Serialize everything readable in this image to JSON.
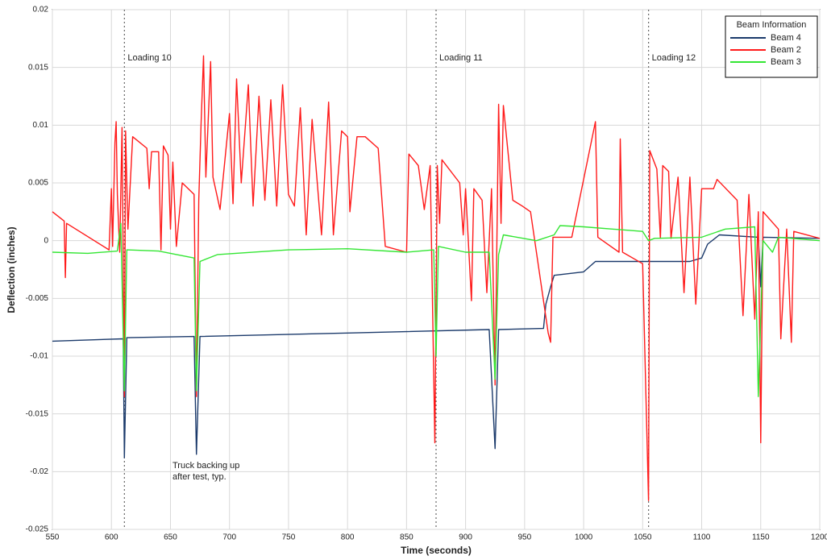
{
  "chart_data": {
    "type": "line",
    "xlabel": "Time (seconds)",
    "ylabel": "Deflection (inches)",
    "xlim": [
      550,
      1200
    ],
    "xticks": [
      550,
      600,
      650,
      700,
      750,
      800,
      850,
      900,
      950,
      1000,
      1050,
      1100,
      1150,
      1200
    ],
    "ylim": [
      -0.025,
      0.02
    ],
    "yticks": [
      -0.025,
      -0.02,
      -0.015,
      -0.01,
      -0.005,
      0,
      0.005,
      0.01,
      0.015,
      0.02
    ],
    "grid": true,
    "legend_title": "Beam Information",
    "legend_position": "top-right",
    "annotations": [
      {
        "text": "Loading 10",
        "x": 611
      },
      {
        "text": "Loading 11",
        "x": 875
      },
      {
        "text": "Loading 12",
        "x": 1055
      }
    ],
    "note": [
      "Truck backing up",
      "after test, typ."
    ],
    "series": [
      {
        "name": "Beam 4",
        "color": "#1b3a6b",
        "x": [
          550,
          610,
          611,
          613,
          670,
          672,
          675,
          800,
          920,
          925,
          928,
          966,
          968,
          972,
          975,
          1000,
          1010,
          1050,
          1090,
          1100,
          1105,
          1115,
          1148,
          1150,
          1152,
          1200
        ],
        "values": [
          -0.0087,
          -0.0085,
          -0.0188,
          -0.0084,
          -0.0083,
          -0.0185,
          -0.0083,
          -0.008,
          -0.0077,
          -0.018,
          -0.0077,
          -0.0076,
          -0.0055,
          -0.004,
          -0.003,
          -0.0027,
          -0.0018,
          -0.0018,
          -0.0018,
          -0.0015,
          -0.0003,
          0.0005,
          0.0003,
          -0.004,
          0.0003,
          0.0002
        ]
      },
      {
        "name": "Beam 2",
        "color": "#ff1a1a",
        "x": [
          550,
          560,
          561,
          562,
          598,
          600,
          601,
          603,
          604,
          605,
          607,
          609,
          611,
          612,
          614,
          618,
          630,
          632,
          634,
          640,
          642,
          644,
          648,
          650,
          652,
          655,
          660,
          670,
          672,
          674,
          676,
          678,
          680,
          684,
          686,
          692,
          700,
          703,
          706,
          710,
          716,
          720,
          725,
          730,
          735,
          740,
          745,
          750,
          755,
          760,
          765,
          770,
          778,
          784,
          788,
          795,
          800,
          802,
          808,
          815,
          826,
          832,
          850,
          852,
          860,
          865,
          870,
          874,
          876,
          878,
          880,
          895,
          898,
          900,
          905,
          907,
          914,
          918,
          922,
          925,
          928,
          930,
          932,
          940,
          948,
          955,
          970,
          972,
          974,
          990,
          1010,
          1012,
          1030,
          1031,
          1033,
          1050,
          1055,
          1056,
          1062,
          1065,
          1067,
          1072,
          1074,
          1080,
          1085,
          1090,
          1095,
          1100,
          1110,
          1113,
          1130,
          1135,
          1140,
          1145,
          1148,
          1150,
          1152,
          1165,
          1167,
          1172,
          1176,
          1178,
          1200
        ],
        "values": [
          0.0025,
          0.0017,
          -0.0032,
          0.0015,
          -0.0008,
          0.0045,
          -0.0005,
          0.0085,
          0.0103,
          0.004,
          -0.001,
          0.0098,
          -0.0135,
          0.0095,
          0.001,
          0.009,
          0.008,
          0.0045,
          0.0077,
          0.0077,
          -0.0008,
          0.0082,
          0.0074,
          0.001,
          0.0068,
          -0.0005,
          0.005,
          0.004,
          -0.0135,
          0.0035,
          0.0102,
          0.016,
          0.0055,
          0.0155,
          0.0055,
          0.0027,
          0.011,
          0.0032,
          0.014,
          0.005,
          0.0135,
          0.003,
          0.0125,
          0.0035,
          0.0122,
          0.003,
          0.0135,
          0.004,
          0.003,
          0.0115,
          0.0005,
          0.0105,
          0.0005,
          0.012,
          0.0005,
          0.0095,
          0.009,
          0.0025,
          0.009,
          0.009,
          0.008,
          -0.0005,
          -0.001,
          0.0075,
          0.0065,
          0.0027,
          0.0065,
          -0.0175,
          0.0065,
          0.0015,
          0.007,
          0.005,
          0.0005,
          0.0045,
          -0.0052,
          0.0045,
          0.0035,
          -0.0045,
          0.0045,
          -0.0125,
          0.0118,
          0.0015,
          0.0117,
          0.0035,
          0.003,
          0.0025,
          -0.008,
          -0.0088,
          0.0003,
          0.0003,
          0.0103,
          0.0003,
          -0.001,
          0.0088,
          -0.001,
          -0.002,
          -0.0225,
          0.0078,
          0.0062,
          0.0002,
          0.0065,
          0.006,
          0.0002,
          0.0055,
          -0.0045,
          0.0055,
          -0.0055,
          0.0045,
          0.0045,
          0.0053,
          0.0035,
          -0.0065,
          0.004,
          -0.0068,
          0.0025,
          -0.0175,
          0.0025,
          0.001,
          -0.0085,
          0.001,
          -0.0088,
          0.0008,
          0.0002
        ]
      },
      {
        "name": "Beam 3",
        "color": "#33e633",
        "x": [
          550,
          580,
          605,
          608,
          611,
          613,
          640,
          660,
          670,
          672,
          675,
          690,
          750,
          800,
          850,
          873,
          875,
          877,
          900,
          920,
          925,
          928,
          932,
          960,
          975,
          980,
          1000,
          1050,
          1055,
          1060,
          1100,
          1120,
          1145,
          1148,
          1152,
          1160,
          1165,
          1200
        ],
        "values": [
          -0.001,
          -0.0011,
          -0.0009,
          0.0015,
          -0.013,
          -0.0008,
          -0.0009,
          -0.0013,
          -0.0015,
          -0.013,
          -0.0018,
          -0.0012,
          -0.0008,
          -0.0007,
          -0.001,
          -0.0008,
          -0.01,
          -0.0005,
          -0.001,
          -0.001,
          -0.012,
          -0.0012,
          0.0005,
          0,
          0.0005,
          0.0013,
          0.0012,
          0.0008,
          0,
          0.0002,
          0.0003,
          0.001,
          0.0012,
          -0.0135,
          0,
          -0.001,
          0.0003,
          0
        ]
      }
    ]
  }
}
